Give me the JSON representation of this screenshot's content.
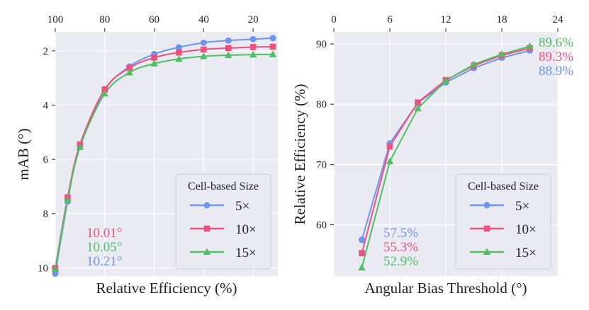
{
  "colors": {
    "s5": "#6d95ef",
    "s10": "#ee507e",
    "s15": "#4fbf63"
  },
  "chart_data": [
    {
      "type": "line",
      "xlabel": "Relative Efficiency (%)",
      "ylabel": "mAB (°)",
      "xlim": [
        100,
        10
      ],
      "ylim": [
        10.3,
        1.3
      ],
      "x_ticks": [
        100,
        80,
        60,
        40,
        20
      ],
      "y_ticks": [
        2,
        4,
        6,
        8,
        10
      ],
      "legend": {
        "title": "Cell-based Size",
        "position": "lower-right"
      },
      "series": [
        {
          "name": "5×",
          "key": "s5",
          "marker": "circle",
          "x": [
            100,
            95,
            90,
            80,
            70,
            60,
            50,
            40,
            30,
            20,
            12
          ],
          "y": [
            10.21,
            7.55,
            5.5,
            3.45,
            2.58,
            2.12,
            1.87,
            1.7,
            1.62,
            1.57,
            1.53
          ]
        },
        {
          "name": "10×",
          "key": "s10",
          "marker": "square",
          "x": [
            100,
            95,
            90,
            80,
            70,
            60,
            50,
            40,
            30,
            20,
            12
          ],
          "y": [
            10.01,
            7.4,
            5.45,
            3.42,
            2.63,
            2.25,
            2.06,
            1.95,
            1.9,
            1.86,
            1.85
          ]
        },
        {
          "name": "15×",
          "key": "s15",
          "marker": "triangle",
          "x": [
            100,
            95,
            90,
            80,
            70,
            60,
            50,
            40,
            30,
            20,
            12
          ],
          "y": [
            10.05,
            7.5,
            5.55,
            3.58,
            2.8,
            2.47,
            2.3,
            2.2,
            2.16,
            2.14,
            2.13
          ]
        }
      ],
      "annotations": [
        {
          "text": "10.01°",
          "key": "s10"
        },
        {
          "text": "10.05°",
          "key": "s15"
        },
        {
          "text": "10.21°",
          "key": "s5"
        }
      ]
    },
    {
      "type": "line",
      "xlabel": "Angular Bias Threshold (°)",
      "ylabel": "Relative Efficiency (%)",
      "xlim": [
        0,
        24
      ],
      "ylim": [
        51.5,
        92
      ],
      "x_ticks": [
        0,
        6,
        12,
        18,
        24
      ],
      "y_ticks": [
        60,
        70,
        80,
        90
      ],
      "legend": {
        "title": "Cell-based Size",
        "position": "lower-right"
      },
      "series": [
        {
          "name": "5×",
          "key": "s5",
          "marker": "circle",
          "x": [
            3,
            6,
            9,
            12,
            15,
            18,
            21
          ],
          "y": [
            57.5,
            73.5,
            80.2,
            83.6,
            86.0,
            87.7,
            88.9
          ]
        },
        {
          "name": "10×",
          "key": "s10",
          "marker": "square",
          "x": [
            3,
            6,
            9,
            12,
            15,
            18,
            21
          ],
          "y": [
            55.3,
            73.0,
            80.3,
            84.0,
            86.4,
            88.1,
            89.3
          ]
        },
        {
          "name": "15×",
          "key": "s15",
          "marker": "triangle",
          "x": [
            3,
            6,
            9,
            12,
            15,
            18,
            21
          ],
          "y": [
            52.9,
            70.5,
            79.3,
            83.9,
            86.6,
            88.3,
            89.6
          ]
        }
      ],
      "annotations_low": [
        {
          "text": "57.5%",
          "key": "s5"
        },
        {
          "text": "55.3%",
          "key": "s10"
        },
        {
          "text": "52.9%",
          "key": "s15"
        }
      ],
      "annotations_high": [
        {
          "text": "89.6%",
          "key": "s15"
        },
        {
          "text": "89.3%",
          "key": "s10"
        },
        {
          "text": "88.9%",
          "key": "s5"
        }
      ]
    }
  ]
}
